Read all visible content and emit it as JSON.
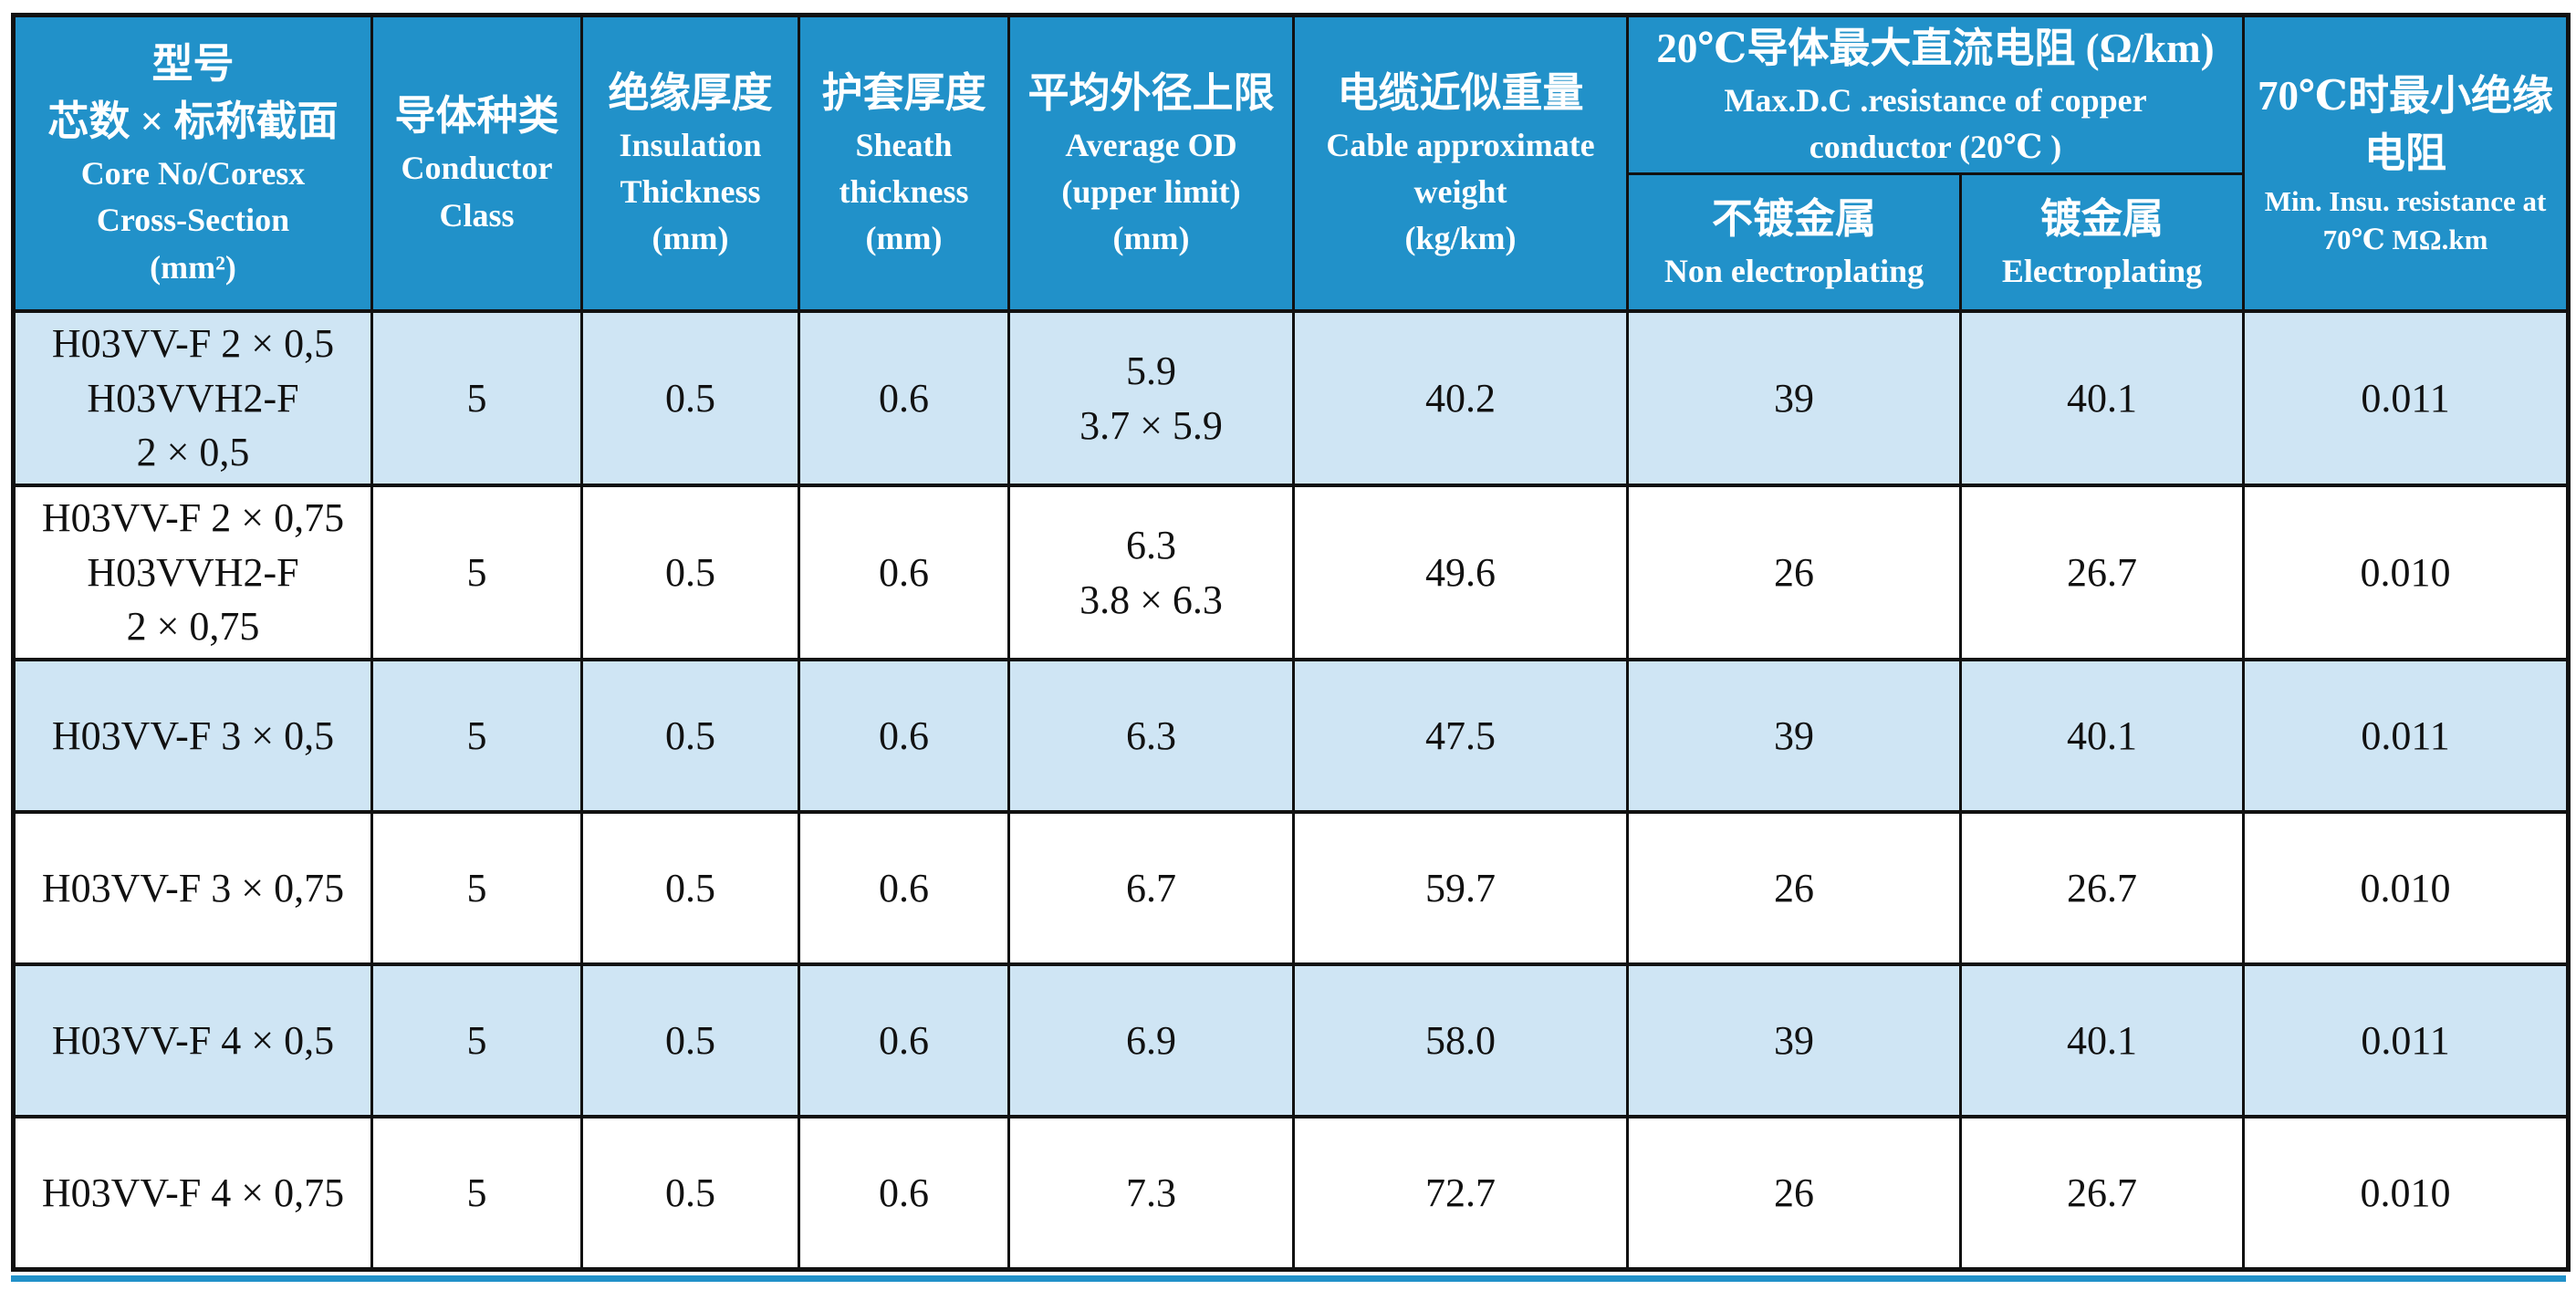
{
  "colors": {
    "header_blue": "#2191c9",
    "alt_row_blue": "#cfe5f4",
    "row_white": "#ffffff",
    "border_black": "#111111",
    "header_text": "#ffffff",
    "body_text": "#111111"
  },
  "table": {
    "header": {
      "model": {
        "zh": [
          "型号",
          "芯数 × 标称截面"
        ],
        "en": [
          "Core No/Coresx",
          "Cross-Section",
          "(mm²)"
        ]
      },
      "conductor_class": {
        "zh": [
          "导体种类"
        ],
        "en": [
          "Conductor",
          "Class"
        ]
      },
      "insulation": {
        "zh": [
          "绝缘厚度"
        ],
        "en": [
          "Insulation",
          "Thickness",
          "(mm)"
        ]
      },
      "sheath": {
        "zh": [
          "护套厚度"
        ],
        "en": [
          "Sheath",
          "thickness",
          "(mm)"
        ]
      },
      "average_od": {
        "zh": [
          "平均外径上限"
        ],
        "en": [
          "Average OD",
          "(upper limit)",
          "(mm)"
        ]
      },
      "weight": {
        "zh": [
          "电缆近似重量"
        ],
        "en": [
          "Cable approximate",
          "weight",
          "(kg/km)"
        ]
      },
      "resistance_group": {
        "zh": [
          "20℃导体最大直流电阻 (Ω/km)"
        ],
        "en": [
          "Max.D.C .resistance of copper",
          "conductor (20℃ )"
        ]
      },
      "non_electroplating": {
        "zh": [
          "不镀金属"
        ],
        "en": [
          "Non electroplating"
        ]
      },
      "electroplating": {
        "zh": [
          "镀金属"
        ],
        "en": [
          "Electroplating"
        ]
      },
      "min_insulation": {
        "zh": [
          "70℃时最小绝缘",
          "电阻"
        ],
        "en": [
          "Min. Insu. resistance at",
          "70℃ MΩ.km"
        ]
      }
    },
    "rows": [
      {
        "model": [
          "H03VV-F 2 × 0,5",
          "H03VVH2-F",
          "2 × 0,5"
        ],
        "conductor_class": "5",
        "insulation_mm": "0.5",
        "sheath_mm": "0.6",
        "average_od_mm": [
          "5.9",
          "3.7 × 5.9"
        ],
        "weight_kg_km": "40.2",
        "resistance_non_plated": "39",
        "resistance_plated": "40.1",
        "min_insulation_70c": "0.011"
      },
      {
        "model": [
          "H03VV-F 2 × 0,75",
          "H03VVH2-F",
          "2 × 0,75"
        ],
        "conductor_class": "5",
        "insulation_mm": "0.5",
        "sheath_mm": "0.6",
        "average_od_mm": [
          "6.3",
          "3.8 × 6.3"
        ],
        "weight_kg_km": "49.6",
        "resistance_non_plated": "26",
        "resistance_plated": "26.7",
        "min_insulation_70c": "0.010"
      },
      {
        "model": [
          "H03VV-F 3 × 0,5"
        ],
        "conductor_class": "5",
        "insulation_mm": "0.5",
        "sheath_mm": "0.6",
        "average_od_mm": [
          "6.3"
        ],
        "weight_kg_km": "47.5",
        "resistance_non_plated": "39",
        "resistance_plated": "40.1",
        "min_insulation_70c": "0.011"
      },
      {
        "model": [
          "H03VV-F 3 × 0,75"
        ],
        "conductor_class": "5",
        "insulation_mm": "0.5",
        "sheath_mm": "0.6",
        "average_od_mm": [
          "6.7"
        ],
        "weight_kg_km": "59.7",
        "resistance_non_plated": "26",
        "resistance_plated": "26.7",
        "min_insulation_70c": "0.010"
      },
      {
        "model": [
          "H03VV-F 4 × 0,5"
        ],
        "conductor_class": "5",
        "insulation_mm": "0.5",
        "sheath_mm": "0.6",
        "average_od_mm": [
          "6.9"
        ],
        "weight_kg_km": "58.0",
        "resistance_non_plated": "39",
        "resistance_plated": "40.1",
        "min_insulation_70c": "0.011"
      },
      {
        "model": [
          "H03VV-F 4 × 0,75"
        ],
        "conductor_class": "5",
        "insulation_mm": "0.5",
        "sheath_mm": "0.6",
        "average_od_mm": [
          "7.3"
        ],
        "weight_kg_km": "72.7",
        "resistance_non_plated": "26",
        "resistance_plated": "26.7",
        "min_insulation_70c": "0.010"
      }
    ]
  }
}
